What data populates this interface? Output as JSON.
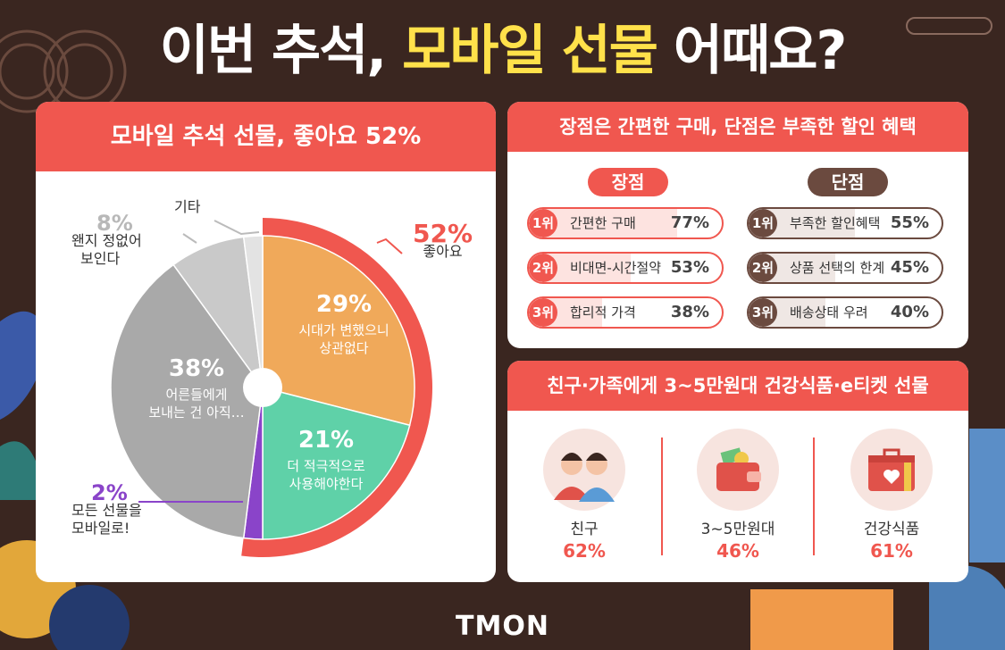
{
  "title": {
    "pre": "이번 추석, ",
    "highlight": "모바일 선물",
    "post": " 어때요?"
  },
  "pie_card": {
    "header": "모바일 추석 선물, 좋아요 52%"
  },
  "pie_labels": {
    "good_total": {
      "value": "52%",
      "text": "좋아요"
    },
    "s29": {
      "value": "29%",
      "line1": "시대가 변했으니",
      "line2": "상관없다"
    },
    "s21": {
      "value": "21%",
      "line1": "더 적극적으로",
      "line2": "사용해야한다"
    },
    "s38": {
      "value": "38%",
      "line1": "어른들에게",
      "line2": "보내는 건 아직…"
    },
    "s8": {
      "value": "8%",
      "line1": "왠지 정없어",
      "line2": "보인다"
    },
    "s2": {
      "value": "2%",
      "line1": "모든 선물을",
      "line2": "모바일로!"
    },
    "etc": {
      "text": "기타"
    }
  },
  "chart_data": [
    {
      "type": "pie",
      "title": "모바일 추석 선물, 좋아요 52%",
      "slices": [
        {
          "label": "시대가 변했으니 상관없다",
          "value": 29,
          "color": "#f0a95a"
        },
        {
          "label": "더 적극적으로 사용해야한다",
          "value": 21,
          "color": "#5fd1a8"
        },
        {
          "label": "모든 선물을 모바일로!",
          "value": 2,
          "color": "#8a44c9"
        },
        {
          "label": "어른들에게 보내는 건 아직…",
          "value": 38,
          "color": "#a9a9a9"
        },
        {
          "label": "왠지 정없어 보인다",
          "value": 8,
          "color": "#c9c9c9"
        },
        {
          "label": "기타",
          "value": 2,
          "color": "#e3e3e3"
        }
      ],
      "group": {
        "label": "좋아요",
        "value": 52
      }
    },
    {
      "type": "bar",
      "title": "장점",
      "categories": [
        "간편한 구매",
        "비대면-시간절약",
        "합리적 가격"
      ],
      "values": [
        77,
        53,
        38
      ]
    },
    {
      "type": "bar",
      "title": "단점",
      "categories": [
        "부족한 할인혜택",
        "상품 선택의 한계",
        "배송상태 우려"
      ],
      "values": [
        55,
        45,
        40
      ]
    },
    {
      "type": "table",
      "title": "친구·가족에게 3~5만원대 건강식품·e티켓 선물",
      "categories": [
        "친구",
        "3~5만원대",
        "건강식품"
      ],
      "values": [
        62,
        46,
        61
      ]
    }
  ],
  "pros_cons": {
    "header": "장점은 간편한 구매, 단점은 부족한 할인 혜택",
    "pros_title": "장점",
    "cons_title": "단점",
    "pros": [
      {
        "rank": "1위",
        "label": "간편한 구매",
        "pct": "77%",
        "value": 77
      },
      {
        "rank": "2위",
        "label": "비대면-시간절약",
        "pct": "53%",
        "value": 53
      },
      {
        "rank": "3위",
        "label": "합리적 가격",
        "pct": "38%",
        "value": 38
      }
    ],
    "cons": [
      {
        "rank": "1위",
        "label": "부족한 할인혜택",
        "pct": "55%",
        "value": 55
      },
      {
        "rank": "2위",
        "label": "상품 선택의 한계",
        "pct": "45%",
        "value": 45
      },
      {
        "rank": "3위",
        "label": "배송상태 우려",
        "pct": "40%",
        "value": 40
      }
    ]
  },
  "gifts": {
    "header": "친구·가족에게 3~5만원대 건강식품·e티켓 선물",
    "items": [
      {
        "label": "친구",
        "pct": "62%",
        "icon": "friends-icon"
      },
      {
        "label": "3~5만원대",
        "pct": "46%",
        "icon": "wallet-icon"
      },
      {
        "label": "건강식품",
        "pct": "61%",
        "icon": "gift-box-icon"
      }
    ]
  },
  "logo": "TMON",
  "colors": {
    "accent": "#f0574f",
    "background": "#3a2620",
    "highlight": "#ffe14a",
    "cons": "#6b4a3f"
  }
}
